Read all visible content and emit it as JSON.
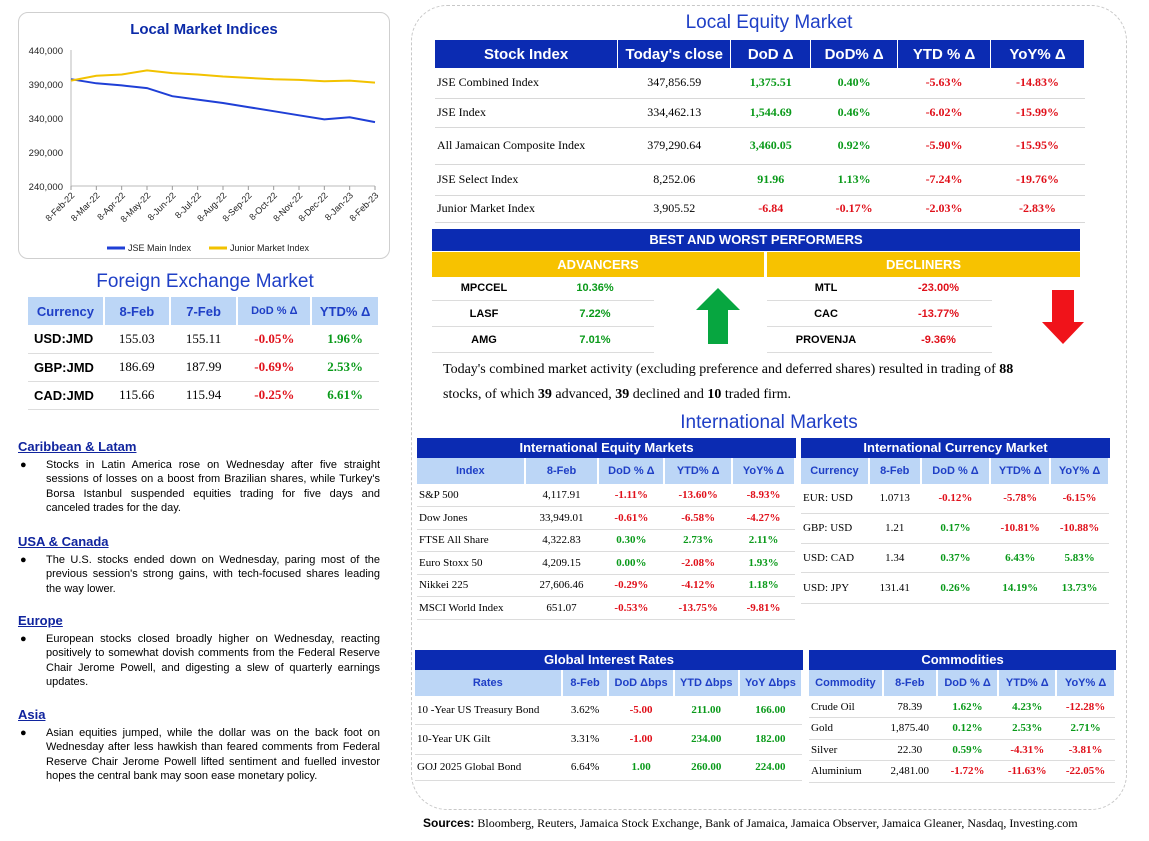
{
  "chart": {
    "title": "Local Market Indices",
    "legend": [
      "JSE Main Index",
      "Junior Market Index"
    ],
    "colors": {
      "main": "#1f3fd6",
      "junior": "#f2c200"
    }
  },
  "chart_data": {
    "type": "line",
    "title": "Local Market Indices",
    "x_ticks": [
      "8-Feb-22",
      "8-Mar-22",
      "8-Apr-22",
      "8-May-22",
      "8-Jun-22",
      "8-Jul-22",
      "8-Aug-22",
      "8-Sep-22",
      "8-Oct-22",
      "8-Nov-22",
      "8-Dec-22",
      "8-Jan-23",
      "8-Feb-23"
    ],
    "y_ticks": [
      "440,000",
      "390,000",
      "340,000",
      "290,000",
      "240,000"
    ],
    "ylim": [
      240000,
      440000
    ],
    "legend_placement": "bottom",
    "series": [
      {
        "name": "JSE Main Index",
        "values": [
          397000,
          391000,
          388000,
          384000,
          372000,
          367000,
          362000,
          356000,
          350000,
          344000,
          338000,
          341000,
          334000
        ]
      },
      {
        "name": "Junior Market Index",
        "values": [
          395000,
          402000,
          404000,
          410000,
          406000,
          404000,
          401000,
          399000,
          397000,
          396000,
          394000,
          395000,
          392000
        ]
      }
    ]
  },
  "fx": {
    "title": "Foreign Exchange Market",
    "headers": [
      "Currency",
      "8-Feb",
      "7-Feb",
      "DoD % Δ",
      "YTD% Δ"
    ],
    "rows": [
      {
        "c": "USD:JMD",
        "a": "155.03",
        "b": "155.11",
        "d": "-0.05%",
        "y": "1.96%"
      },
      {
        "c": "GBP:JMD",
        "a": "186.69",
        "b": "187.99",
        "d": "-0.69%",
        "y": "2.53%"
      },
      {
        "c": "CAD:JMD",
        "a": "115.66",
        "b": "115.94",
        "d": "-0.25%",
        "y": "6.61%"
      }
    ]
  },
  "news": [
    {
      "h": "Caribbean & Latam",
      "b": "Stocks in Latin America rose on Wednesday after five straight sessions of losses on a boost from Brazilian shares, while Turkey's Borsa Istanbul suspended equities trading for five days and canceled trades for the day."
    },
    {
      "h": "USA & Canada",
      "b": "The U.S. stocks ended down on Wednesday, paring most of the previous session's strong gains, with tech-focused shares leading the way lower."
    },
    {
      "h": "Europe",
      "b": "European stocks closed broadly higher on Wednesday, reacting positively to somewhat dovish comments from the Federal Reserve Chair Jerome Powell, and digesting a slew of quarterly earnings updates."
    },
    {
      "h": "Asia",
      "b": "Asian equities jumped, while the dollar was on the back foot on Wednesday after less hawkish than feared comments from Federal Reserve Chair Jerome Powell lifted sentiment and fuelled investor hopes the central bank may soon ease monetary policy."
    }
  ],
  "equity": {
    "title": "Local Equity Market",
    "headers": [
      "Stock Index",
      "Today's close",
      "DoD  Δ",
      "DoD% Δ",
      "YTD % Δ",
      "YoY% Δ"
    ],
    "rows": [
      {
        "n": "JSE Combined Index",
        "c": "347,856.59",
        "d": "1,375.51",
        "dp": "0.40%",
        "y": "-5.63%",
        "yy": "-14.83%"
      },
      {
        "n": "JSE Index",
        "c": "334,462.13",
        "d": "1,544.69",
        "dp": "0.46%",
        "y": "-6.02%",
        "yy": "-15.99%"
      },
      {
        "n": "All Jamaican Composite Index",
        "c": "379,290.64",
        "d": "3,460.05",
        "dp": "0.92%",
        "y": "-5.90%",
        "yy": "-15.95%"
      },
      {
        "n": "JSE Select Index",
        "c": "8,252.06",
        "d": "91.96",
        "dp": "1.13%",
        "y": "-7.24%",
        "yy": "-19.76%"
      },
      {
        "n": "Junior Market Index",
        "c": "3,905.52",
        "d": "-6.84",
        "dp": "-0.17%",
        "y": "-2.03%",
        "yy": "-2.83%"
      }
    ]
  },
  "performers": {
    "title": "BEST AND WORST PERFORMERS",
    "advancers_label": "ADVANCERS",
    "decliners_label": "DECLINERS",
    "advancers": [
      {
        "n": "MPCCEL",
        "v": "10.36%"
      },
      {
        "n": "LASF",
        "v": "7.22%"
      },
      {
        "n": "AMG",
        "v": "7.01%"
      }
    ],
    "decliners": [
      {
        "n": "MTL",
        "v": "-23.00%"
      },
      {
        "n": "CAC",
        "v": "-13.77%"
      },
      {
        "n": "PROVENJA",
        "v": "-9.36%"
      }
    ]
  },
  "activity": {
    "p1": "Today's combined market activity (excluding preference and deferred shares) resulted in trading of ",
    "stocks": "88",
    "p2": "stocks, of which ",
    "adv": "39",
    "p3": " advanced, ",
    "dec": "39",
    "p4": " declined and ",
    "firm": "10",
    "p5": " traded firm."
  },
  "intl": {
    "title": "International Markets",
    "equity": {
      "title": "International Equity Markets",
      "headers": [
        "Index",
        "8-Feb",
        "DoD % Δ",
        "YTD% Δ",
        "YoY% Δ"
      ],
      "rows": [
        {
          "n": "S&P 500",
          "a": "4,117.91",
          "d": "-1.11%",
          "y": "-13.60%",
          "yy": "-8.93%"
        },
        {
          "n": "Dow Jones",
          "a": "33,949.01",
          "d": "-0.61%",
          "y": "-6.58%",
          "yy": "-4.27%"
        },
        {
          "n": "FTSE All Share",
          "a": "4,322.83",
          "d": "0.30%",
          "y": "2.73%",
          "yy": "2.11%"
        },
        {
          "n": "Euro Stoxx 50",
          "a": "4,209.15",
          "d": "0.00%",
          "y": "-2.08%",
          "yy": "1.93%"
        },
        {
          "n": "Nikkei 225",
          "a": "27,606.46",
          "d": "-0.29%",
          "y": "-4.12%",
          "yy": "1.18%"
        },
        {
          "n": "MSCI World Index",
          "a": "651.07",
          "d": "-0.53%",
          "y": "-13.75%",
          "yy": "-9.81%"
        }
      ]
    },
    "currency": {
      "title": "International Currency Market",
      "headers": [
        "Currency",
        "8-Feb",
        "DoD % Δ",
        "YTD% Δ",
        "YoY% Δ"
      ],
      "rows": [
        {
          "n": "EUR: USD",
          "a": "1.0713",
          "d": "-0.12%",
          "y": "-5.78%",
          "yy": "-6.15%"
        },
        {
          "n": "GBP: USD",
          "a": "1.21",
          "d": "0.17%",
          "y": "-10.81%",
          "yy": "-10.88%"
        },
        {
          "n": "USD: CAD",
          "a": "1.34",
          "d": "0.37%",
          "y": "6.43%",
          "yy": "5.83%"
        },
        {
          "n": "USD: JPY",
          "a": "131.41",
          "d": "0.26%",
          "y": "14.19%",
          "yy": "13.73%"
        }
      ]
    },
    "rates": {
      "title": "Global Interest Rates",
      "headers": [
        "Rates",
        "8-Feb",
        "DoD Δbps",
        "YTD Δbps",
        "YoY Δbps"
      ],
      "rows": [
        {
          "n": "10 -Year US Treasury Bond",
          "a": "3.62%",
          "d": "-5.00",
          "y": "211.00",
          "yy": "166.00"
        },
        {
          "n": "10-Year UK Gilt",
          "a": "3.31%",
          "d": "-1.00",
          "y": "234.00",
          "yy": "182.00"
        },
        {
          "n": "GOJ 2025 Global Bond",
          "a": "6.64%",
          "d": "1.00",
          "y": "260.00",
          "yy": "224.00"
        }
      ]
    },
    "commodities": {
      "title": "Commodities",
      "headers": [
        "Commodity",
        "8-Feb",
        "DoD % Δ",
        "YTD% Δ",
        "YoY% Δ"
      ],
      "rows": [
        {
          "n": "Crude Oil",
          "a": "78.39",
          "d": "1.62%",
          "y": "4.23%",
          "yy": "-12.28%"
        },
        {
          "n": "Gold",
          "a": "1,875.40",
          "d": "0.12%",
          "y": "2.53%",
          "yy": "2.71%"
        },
        {
          "n": "Silver",
          "a": "22.30",
          "d": "0.59%",
          "y": "-4.31%",
          "yy": "-3.81%"
        },
        {
          "n": "Aluminium",
          "a": "2,481.00",
          "d": "-1.72%",
          "y": "-11.63%",
          "yy": "-22.05%"
        }
      ]
    }
  },
  "sources": {
    "label": "Sources:",
    "text": " Bloomberg, Reuters, Jamaica Stock Exchange, Bank of Jamaica, Jamaica Observer, Jamaica Gleaner, Nasdaq, Investing.com"
  }
}
